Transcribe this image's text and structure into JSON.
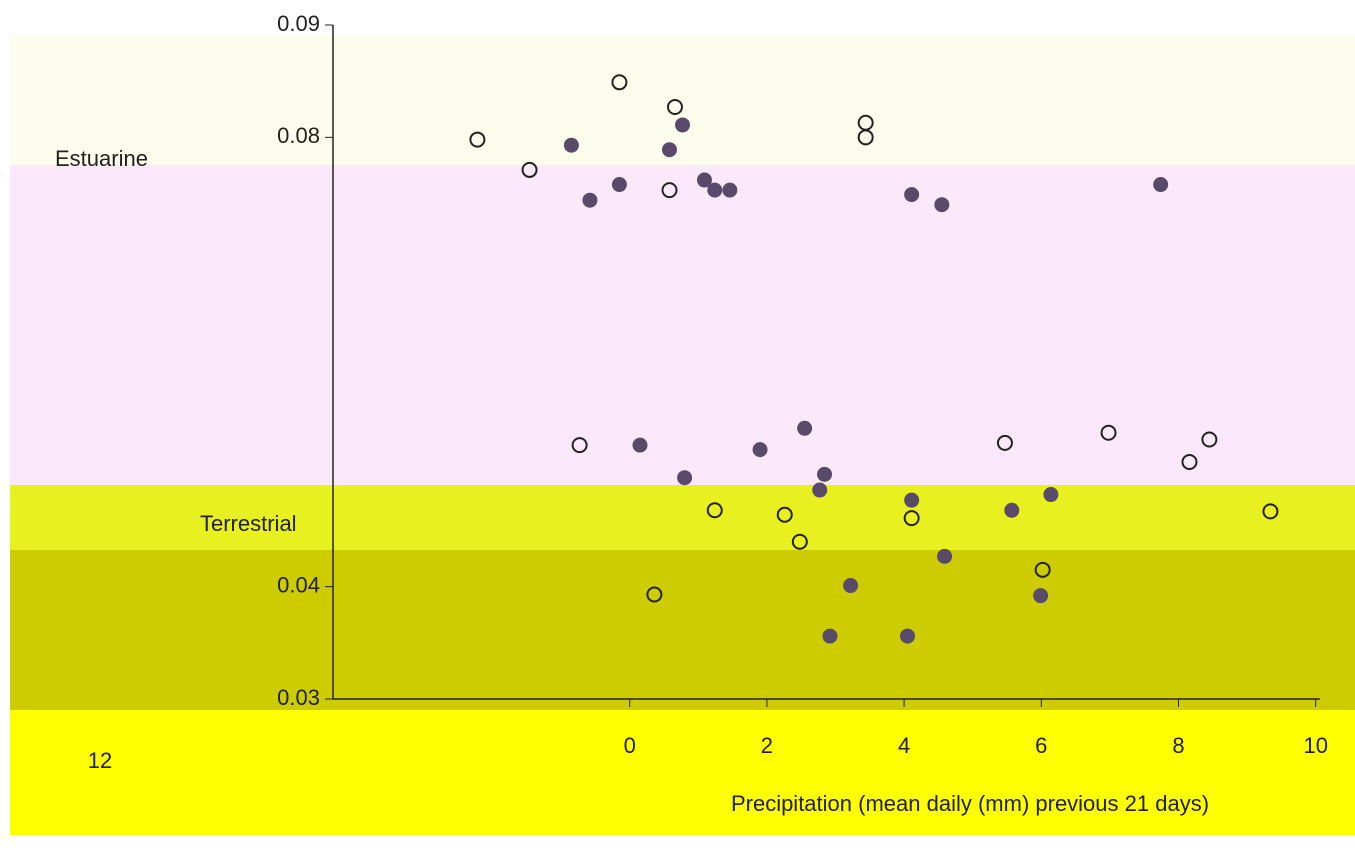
{
  "chart_data": {
    "type": "scatter",
    "x_label": "Precipitation (mean daily (mm) previous 21 days)",
    "annotations": [
      "Estuarine",
      "Terrestrial",
      "12"
    ],
    "xlim": [
      -4.5,
      10.5
    ],
    "xticks": [
      0,
      2,
      4,
      6,
      8,
      10
    ],
    "ylim": [
      0.03,
      0.09
    ],
    "yticks": [
      0.03,
      0.04,
      0.08,
      0.09
    ],
    "series": [
      {
        "marker": "filled",
        "color": "#5a4a6a",
        "x": [
          0.77,
          -0.15,
          -0.58,
          1.09,
          1.24,
          1.46,
          4.11,
          4.55,
          7.74,
          -0.85,
          0.58,
          2.84,
          2.77,
          4.11,
          5.57,
          6.14,
          4.59,
          3.22,
          5.99,
          2.92,
          4.05,
          0.15,
          0.8,
          2.55,
          1.9
        ],
        "values": [
          0.0811,
          0.0758,
          0.0744,
          0.0762,
          0.0753,
          0.0753,
          0.0749,
          0.074,
          0.0758,
          0.0793,
          0.0789,
          0.05,
          0.0486,
          0.0477,
          0.0468,
          0.0482,
          0.0427,
          0.0401,
          0.0392,
          0.0356,
          0.0356,
          0.0526,
          0.0497,
          0.0541,
          0.0522
        ]
      },
      {
        "marker": "open",
        "color": "#222222",
        "x": [
          -0.15,
          0.66,
          3.44,
          3.44,
          -2.22,
          0.58,
          -1.46,
          1.24,
          2.26,
          2.48,
          4.11,
          9.34,
          6.02,
          0.36,
          -0.73,
          6.98,
          8.16,
          5.47,
          8.45
        ],
        "values": [
          0.0849,
          0.0827,
          0.0813,
          0.08,
          0.0798,
          0.0753,
          0.0771,
          0.0468,
          0.0464,
          0.044,
          0.0461,
          0.0467,
          0.0415,
          0.0393,
          0.0526,
          0.0537,
          0.0511,
          0.0528,
          0.0531
        ]
      }
    ]
  }
}
